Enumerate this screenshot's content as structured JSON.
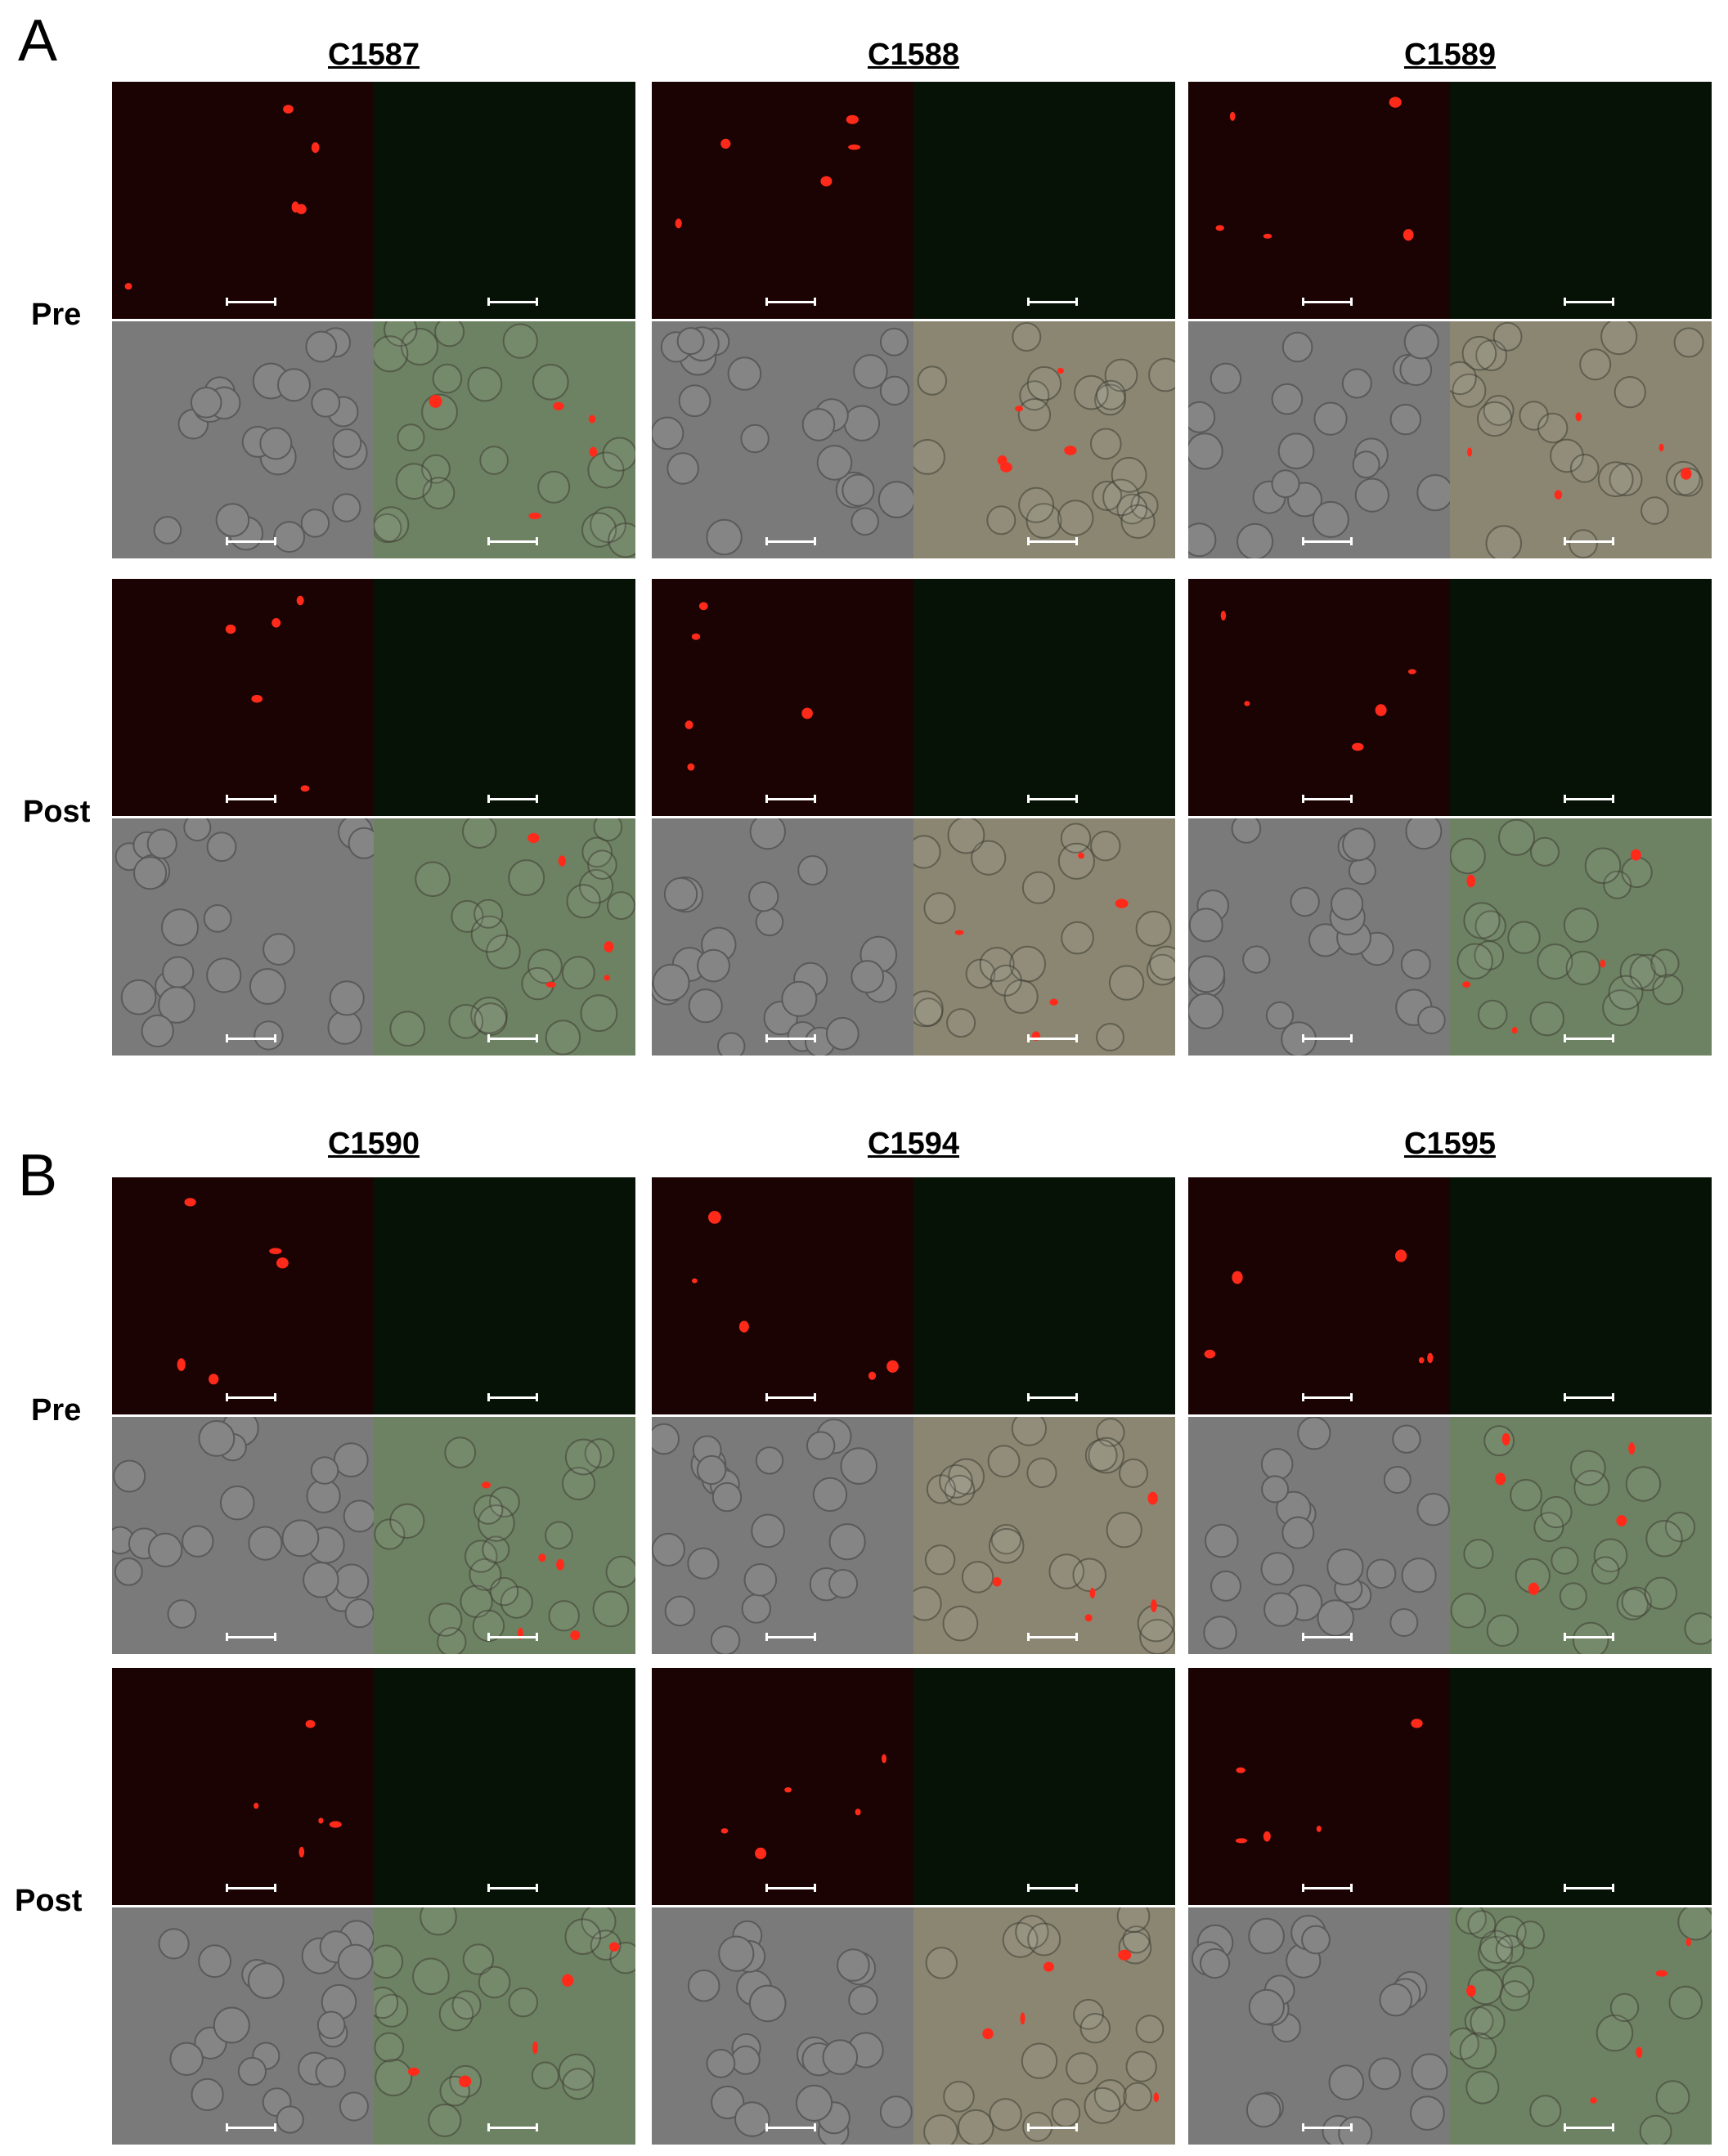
{
  "panels": [
    {
      "letter": "A",
      "samples": [
        "C1587",
        "C1588",
        "C1589"
      ],
      "rows": [
        "Pre",
        "Post"
      ]
    },
    {
      "letter": "B",
      "samples": [
        "C1590",
        "C1594",
        "C1595"
      ],
      "rows": [
        "Pre",
        "Post"
      ]
    }
  ],
  "colors": {
    "fluor_red_bg": "#1c0303",
    "fluor_green_bg": "#061206",
    "brightfield_bg": "#7a7a7a",
    "merge_green_bg": "#6d8262",
    "merge_tan_bg": "#8b8672",
    "red_signal": "#ff2a1a",
    "green_signal": "#3cff3c"
  }
}
